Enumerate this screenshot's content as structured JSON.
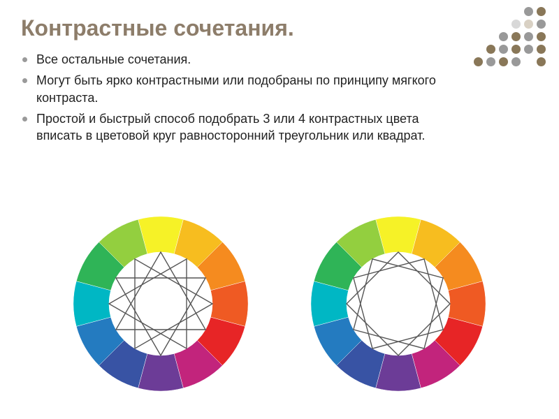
{
  "title": "Контрастные сочетания.",
  "title_color": "#8d7d6a",
  "title_fontsize": 32,
  "bullets": [
    "Все остальные сочетания.",
    "Могут быть ярко контрастными или подобраны по принципу мягкого контраста.",
    "Простой и быстрый способ подобрать 3 или 4 контрастных цвета вписать в цветовой круг равносторонний треугольник или квадрат."
  ],
  "bullet_fontsize": 18,
  "bullet_color": "#222222",
  "bullet_marker_color": "#9a9a9a",
  "dot_grid": {
    "spacing": 18,
    "dot_diameter": 13,
    "cols": 6,
    "rows": 6,
    "colors": [
      [
        "",
        "",
        "",
        "",
        "#999999",
        "#897758"
      ],
      [
        "",
        "",
        "",
        "#d8d8d8",
        "#d9d1c4",
        "#999999"
      ],
      [
        "",
        "",
        "#999999",
        "#897758",
        "#999999",
        "#897758"
      ],
      [
        "",
        "#897758",
        "#999999",
        "#897758",
        "#999999",
        "#897758"
      ],
      [
        "#897758",
        "#999999",
        "#897758",
        "#999999",
        "",
        "#897758"
      ],
      [
        "",
        "",
        "",
        "",
        "",
        ""
      ]
    ]
  },
  "color_wheel": {
    "segments": 12,
    "outer_radius": 125,
    "inner_radius": 74,
    "colors": [
      "#f6f227",
      "#f7bd1f",
      "#f58b1f",
      "#ef5a23",
      "#e72526",
      "#c2247c",
      "#6c3c97",
      "#3853a4",
      "#247bc0",
      "#00b7c4",
      "#2fb457",
      "#93cf3f"
    ],
    "stroke": "#ffffff",
    "stroke_width": 0.5
  },
  "overlays": {
    "triangle": {
      "sides": 3,
      "copies": 4,
      "rotation_step_deg": 30,
      "line_color": "#555555",
      "line_width": 1.4,
      "vertex_radius": 74
    },
    "square": {
      "sides": 4,
      "copies": 3,
      "rotation_step_deg": 30,
      "line_color": "#555555",
      "line_width": 1.4,
      "vertex_radius": 74
    }
  }
}
